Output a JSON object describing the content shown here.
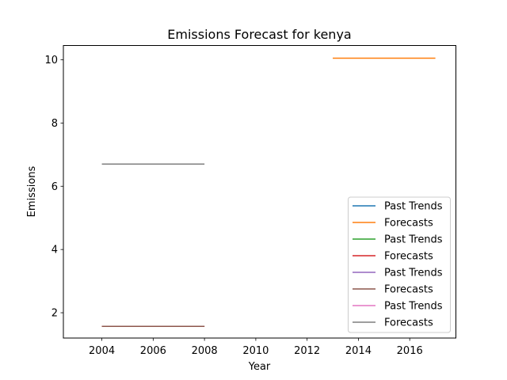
{
  "chart_data": {
    "type": "line",
    "title": "Emissions Forecast for kenya",
    "xlabel": "Year",
    "ylabel": "Emissions",
    "xlim": [
      2002.5,
      2017.8
    ],
    "ylim": [
      1.2,
      10.45
    ],
    "x_ticks": [
      2004,
      2006,
      2008,
      2010,
      2012,
      2014,
      2016
    ],
    "y_ticks": [
      2,
      4,
      6,
      8,
      10
    ],
    "grid": false,
    "legend_position": "lower-right",
    "series": [
      {
        "name": "Past Trends",
        "color": "#1f77b4",
        "x": [],
        "y": []
      },
      {
        "name": "Forecasts",
        "color": "#ff7f0e",
        "x": [
          2013,
          2014,
          2015,
          2016,
          2017
        ],
        "y": [
          10.05,
          10.05,
          10.05,
          10.05,
          10.05
        ]
      },
      {
        "name": "Past Trends",
        "color": "#2ca02c",
        "x": [],
        "y": []
      },
      {
        "name": "Forecasts",
        "color": "#d62728",
        "x": [
          2004,
          2005,
          2006,
          2007,
          2008
        ],
        "y": [
          1.57,
          1.57,
          1.57,
          1.57,
          1.57
        ]
      },
      {
        "name": "Past Trends",
        "color": "#9467bd",
        "x": [],
        "y": []
      },
      {
        "name": "Forecasts",
        "color": "#8c564b",
        "x": [
          2004,
          2005,
          2006,
          2007,
          2008
        ],
        "y": [
          1.57,
          1.57,
          1.57,
          1.57,
          1.57
        ]
      },
      {
        "name": "Past Trends",
        "color": "#e377c2",
        "x": [],
        "y": []
      },
      {
        "name": "Forecasts",
        "color": "#7f7f7f",
        "x": [
          2004,
          2005,
          2006,
          2007,
          2008
        ],
        "y": [
          6.7,
          6.7,
          6.7,
          6.7,
          6.7
        ]
      }
    ]
  }
}
